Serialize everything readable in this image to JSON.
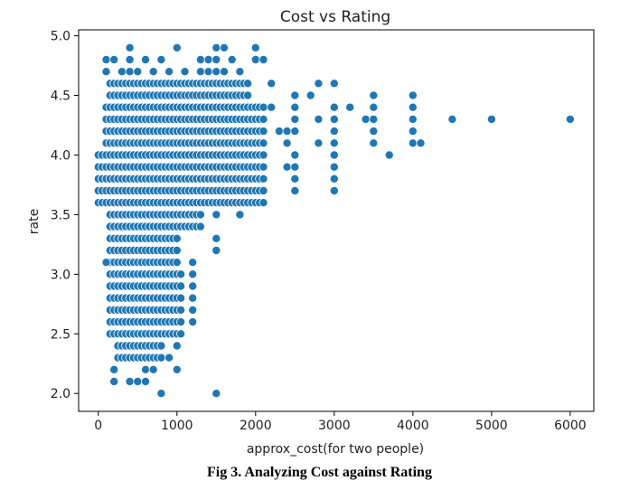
{
  "caption": "Fig 3. Analyzing Cost against Rating",
  "chart_data": {
    "type": "scatter",
    "title": "Cost vs Rating",
    "xlabel": "approx_cost(for two people)",
    "ylabel": "rate",
    "xlim": [
      -250,
      6300
    ],
    "ylim": [
      1.85,
      5.05
    ],
    "xticks": [
      0,
      1000,
      2000,
      3000,
      4000,
      5000,
      6000
    ],
    "yticks": [
      2.0,
      2.5,
      3.0,
      3.5,
      4.0,
      4.5,
      5.0
    ],
    "grid": false,
    "point_color": "#1f77b4",
    "bands": [
      {
        "costs": [
          0,
          6000
        ],
        "rates": [
          3.6,
          3.7,
          3.8,
          3.9,
          4.0,
          4.1,
          4.2,
          4.3,
          4.4
        ],
        "note": "dense grid 0-2500 per 50/100"
      }
    ],
    "points": [
      [
        100,
        4.8
      ],
      [
        200,
        4.8
      ],
      [
        400,
        4.9
      ],
      [
        1000,
        4.9
      ],
      [
        1500,
        4.9
      ],
      [
        1600,
        4.9
      ],
      [
        2000,
        4.9
      ],
      [
        100,
        4.7
      ],
      [
        300,
        4.7
      ],
      [
        400,
        4.7
      ],
      [
        500,
        4.7
      ],
      [
        700,
        4.7
      ],
      [
        900,
        4.7
      ],
      [
        1100,
        4.7
      ],
      [
        1300,
        4.7
      ],
      [
        1400,
        4.7
      ],
      [
        1500,
        4.7
      ],
      [
        1600,
        4.7
      ],
      [
        1800,
        4.7
      ],
      [
        400,
        4.8
      ],
      [
        600,
        4.8
      ],
      [
        800,
        4.8
      ],
      [
        1300,
        4.8
      ],
      [
        1400,
        4.8
      ],
      [
        1500,
        4.8
      ],
      [
        1700,
        4.8
      ],
      [
        2000,
        4.8
      ],
      [
        2100,
        4.8
      ],
      [
        2200,
        4.6
      ],
      [
        2800,
        4.6
      ],
      [
        3000,
        4.6
      ],
      [
        2500,
        4.5
      ],
      [
        2700,
        4.5
      ],
      [
        3500,
        4.5
      ],
      [
        4000,
        4.5
      ],
      [
        2200,
        4.4
      ],
      [
        2500,
        4.4
      ],
      [
        3000,
        4.4
      ],
      [
        3200,
        4.4
      ],
      [
        3500,
        4.4
      ],
      [
        4000,
        4.4
      ],
      [
        2500,
        4.3
      ],
      [
        2800,
        4.3
      ],
      [
        3000,
        4.3
      ],
      [
        3400,
        4.3
      ],
      [
        3500,
        4.3
      ],
      [
        4000,
        4.3
      ],
      [
        4500,
        4.3
      ],
      [
        5000,
        4.3
      ],
      [
        6000,
        4.3
      ],
      [
        2300,
        4.2
      ],
      [
        2400,
        4.2
      ],
      [
        2500,
        4.2
      ],
      [
        3000,
        4.2
      ],
      [
        3500,
        4.2
      ],
      [
        4000,
        4.2
      ],
      [
        2400,
        4.1
      ],
      [
        2800,
        4.1
      ],
      [
        3000,
        4.1
      ],
      [
        3500,
        4.1
      ],
      [
        4000,
        4.1
      ],
      [
        4100,
        4.1
      ],
      [
        3700,
        4.0
      ],
      [
        2500,
        4.0
      ],
      [
        3000,
        4.0
      ],
      [
        2400,
        3.9
      ],
      [
        2500,
        3.9
      ],
      [
        3000,
        3.9
      ],
      [
        2500,
        3.8
      ],
      [
        3000,
        3.8
      ],
      [
        2500,
        3.7
      ],
      [
        3000,
        3.7
      ],
      [
        1500,
        3.5
      ],
      [
        1800,
        3.5
      ],
      [
        1500,
        3.3
      ],
      [
        1500,
        3.2
      ],
      [
        1200,
        3.1
      ],
      [
        1200,
        3.0
      ],
      [
        1200,
        2.9
      ],
      [
        1200,
        2.8
      ],
      [
        1200,
        2.7
      ],
      [
        1200,
        2.6
      ],
      [
        400,
        2.1
      ],
      [
        500,
        2.1
      ],
      [
        600,
        2.1
      ],
      [
        200,
        2.1
      ],
      [
        200,
        2.2
      ],
      [
        1000,
        2.2
      ],
      [
        600,
        2.2
      ],
      [
        700,
        2.2
      ],
      [
        800,
        2.0
      ],
      [
        1500,
        2.0
      ],
      [
        300,
        2.3
      ],
      [
        500,
        2.3
      ],
      [
        900,
        2.3
      ],
      [
        1000,
        2.4
      ],
      [
        300,
        2.4
      ]
    ]
  }
}
